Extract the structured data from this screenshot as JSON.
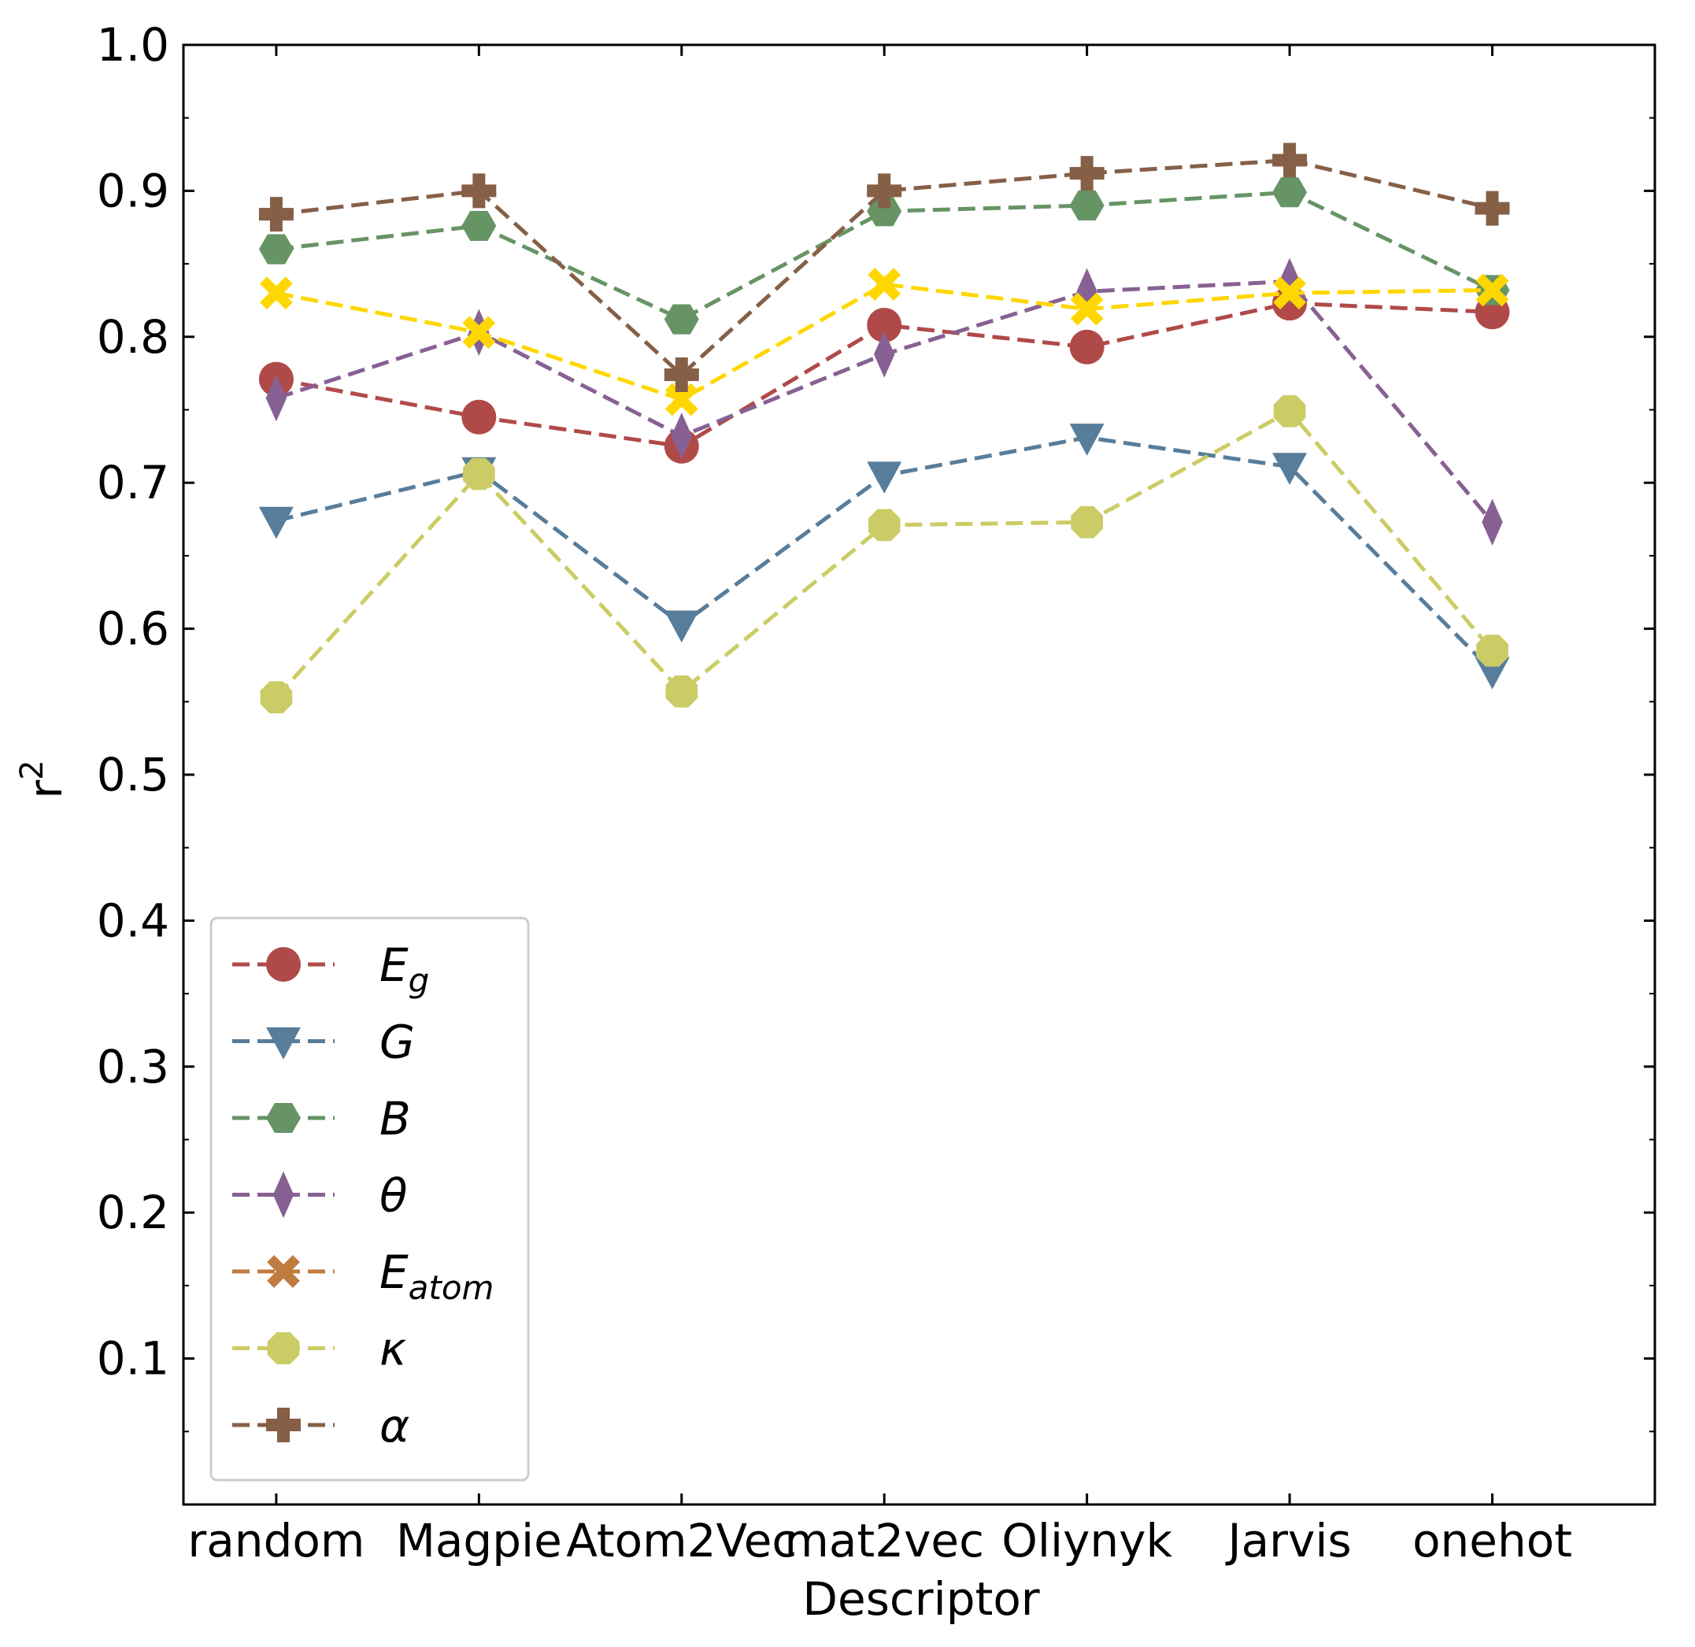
{
  "chart_data": {
    "type": "line",
    "title": "",
    "xlabel": "Descriptor",
    "ylabel": "r",
    "ylabel_sup": "2",
    "categories": [
      "random",
      "Magpie",
      "Atom2Vec",
      "mat2vec",
      "Oliynyk",
      "Jarvis",
      "onehot"
    ],
    "ylim": [
      0.0,
      1.0
    ],
    "yticks": [
      "0.1",
      "0.2",
      "0.3",
      "0.4",
      "0.5",
      "0.6",
      "0.7",
      "0.8",
      "0.9",
      "1.0"
    ],
    "grid": false,
    "legend_position": "lower-left",
    "series": [
      {
        "name": "E",
        "name_sub": "g",
        "marker": "circle",
        "color": "#b04a49",
        "values": [
          0.771,
          0.745,
          0.725,
          0.808,
          0.793,
          0.823,
          0.817
        ]
      },
      {
        "name": "G",
        "name_sub": "",
        "marker": "triangle-down",
        "color": "#587d9b",
        "values": [
          0.674,
          0.708,
          0.603,
          0.705,
          0.731,
          0.711,
          0.571
        ]
      },
      {
        "name": "B",
        "name_sub": "",
        "marker": "hexagon",
        "color": "#669465",
        "values": [
          0.86,
          0.876,
          0.812,
          0.886,
          0.89,
          0.899,
          0.832
        ]
      },
      {
        "name": "θ",
        "name_sub": "",
        "marker": "thin-diamond",
        "color": "#876193",
        "values": [
          0.758,
          0.803,
          0.732,
          0.788,
          0.831,
          0.838,
          0.673
        ]
      },
      {
        "name": "E",
        "name_sub": "atom",
        "marker": "x",
        "color": "#ffd700",
        "legend_color": "#c07c3e",
        "values": [
          0.83,
          0.803,
          0.757,
          0.836,
          0.819,
          0.83,
          0.832
        ]
      },
      {
        "name": "κ",
        "name_sub": "",
        "marker": "octagon",
        "color": "#cccc66",
        "values": [
          0.553,
          0.706,
          0.557,
          0.671,
          0.673,
          0.749,
          0.585
        ]
      },
      {
        "name": "α",
        "name_sub": "",
        "marker": "plus",
        "color": "#865f47",
        "values": [
          0.884,
          0.9,
          0.774,
          0.9,
          0.912,
          0.921,
          0.888
        ]
      }
    ]
  }
}
